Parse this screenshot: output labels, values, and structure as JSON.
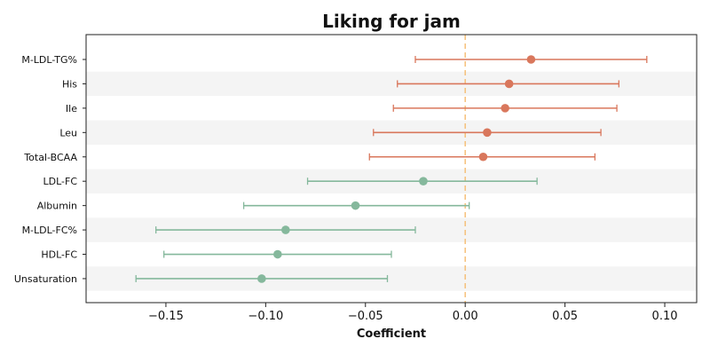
{
  "chart_data": {
    "type": "forest",
    "title": "Liking for jam",
    "xlabel": "Coefficient",
    "ylabel": "",
    "xlim": [
      -0.19,
      0.116
    ],
    "xticks": [
      -0.15,
      -0.1,
      -0.05,
      0.0,
      0.05,
      0.1
    ],
    "xtick_labels": [
      "−0.15",
      "−0.10",
      "−0.05",
      "0.00",
      "0.05",
      "0.10"
    ],
    "reference_line": 0.0,
    "grid": false,
    "alternating_row_bands": true,
    "colors": {
      "positive": "#d9775c",
      "negative": "#85b89c",
      "reference_line": "#f5c07a",
      "band": "#f4f4f4"
    },
    "rows": [
      {
        "label": "M-LDL-TG%",
        "estimate": 0.033,
        "lower": -0.025,
        "upper": 0.091
      },
      {
        "label": "His",
        "estimate": 0.022,
        "lower": -0.034,
        "upper": 0.077
      },
      {
        "label": "Ile",
        "estimate": 0.02,
        "lower": -0.036,
        "upper": 0.076
      },
      {
        "label": "Leu",
        "estimate": 0.011,
        "lower": -0.046,
        "upper": 0.068
      },
      {
        "label": "Total-BCAA",
        "estimate": 0.009,
        "lower": -0.048,
        "upper": 0.065
      },
      {
        "label": "LDL-FC",
        "estimate": -0.021,
        "lower": -0.079,
        "upper": 0.036
      },
      {
        "label": "Albumin",
        "estimate": -0.055,
        "lower": -0.111,
        "upper": 0.002
      },
      {
        "label": "M-LDL-FC%",
        "estimate": -0.09,
        "lower": -0.155,
        "upper": -0.025
      },
      {
        "label": "HDL-FC",
        "estimate": -0.094,
        "lower": -0.151,
        "upper": -0.037
      },
      {
        "label": "Unsaturation",
        "estimate": -0.102,
        "lower": -0.165,
        "upper": -0.039
      }
    ]
  }
}
